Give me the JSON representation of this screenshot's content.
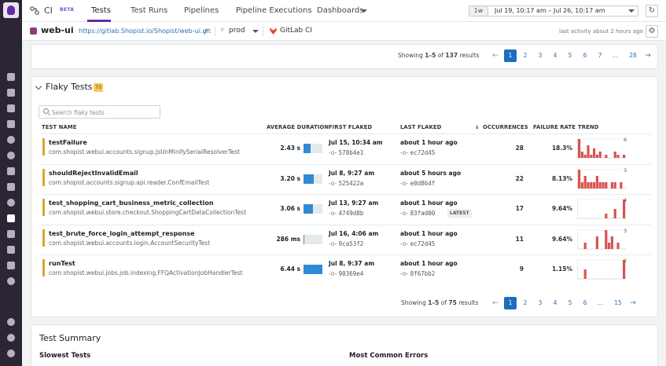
{
  "topnav": {
    "app": "CI",
    "beta": "BETA",
    "tabs": [
      {
        "label": "Tests"
      },
      {
        "label": "Test Runs"
      },
      {
        "label": "Pipelines"
      },
      {
        "label": "Pipeline Executions"
      },
      {
        "label": "Dashboards"
      }
    ],
    "time_range": {
      "preset": "1w",
      "value": "Jul 19, 10:17 am – Jul 26, 10:17 am"
    }
  },
  "repo": {
    "name": "web-ui",
    "url": "https://gitlab.Shopist.io/Shopist/web-ui.git",
    "branch": "prod",
    "provider": "GitLab CI",
    "activity": "last activity about 2 hours ago"
  },
  "top_pager": {
    "summary_prefix": "Showing ",
    "range": "1–5",
    "of": " of ",
    "total": "137",
    "suffix": " results",
    "pages": [
      "1",
      "2",
      "3",
      "4",
      "5",
      "6",
      "7",
      "...",
      "28"
    ]
  },
  "flaky": {
    "title": "Flaky Tests",
    "count": "75",
    "search_placeholder": "Search flaky tests",
    "columns": {
      "name": "TEST NAME",
      "avg": "AVERAGE DURATION",
      "first": "FIRST FLAKED",
      "last": "LAST FLAKED",
      "occ": "OCCURRENCES",
      "rate": "FAILURE RATE",
      "trend": "TREND"
    },
    "rows": [
      {
        "name": "testFailure",
        "suite": "com.shopist.webui.accounts.signup.JsUnMinifySerialResolverTest",
        "duration": "2.43 s",
        "duration_fill": 0.38,
        "first": "Jul 15, 10:34 am",
        "first_commit": "578b4e1",
        "last": "about 1 hour ago",
        "last_commit": "ec72d45",
        "latest": "",
        "occurrences": "28",
        "failure_rate": "18.3%",
        "trend_max": "6",
        "trend": [
          6,
          2,
          1,
          4,
          1,
          3,
          1,
          2,
          0,
          1,
          0,
          0,
          2,
          1,
          0,
          1
        ]
      },
      {
        "name": "shouldRejectInvalidEmail",
        "suite": "com.shopist.accounts.signup.api.reader.ConfEmailTest",
        "duration": "3.20 s",
        "duration_fill": 0.55,
        "first": "Jul 8, 9:27 am",
        "first_commit": "525422a",
        "last": "about 5 hours ago",
        "last_commit": "e0d864f",
        "latest": "",
        "occurrences": "22",
        "failure_rate": "8.13%",
        "trend_max": "3",
        "trend": [
          3,
          1,
          2,
          1,
          1,
          1,
          2,
          1,
          1,
          1,
          0,
          1,
          1,
          0,
          1,
          0
        ]
      },
      {
        "name": "test_shopping_cart_business_metric_collection",
        "suite": "com.shopist.webui.store.checkout.ShoppingCartDataCollectionTest",
        "duration": "3.06 s",
        "duration_fill": 0.5,
        "first": "Jul 13, 9:27 am",
        "first_commit": "4749d8b",
        "last": "about 1 hour ago",
        "last_commit": "83fad00",
        "latest": "LATEST",
        "occurrences": "17",
        "failure_rate": "9.64%",
        "trend_max": "4",
        "trend": [
          0,
          0,
          0,
          0,
          0,
          0,
          0,
          0,
          0,
          1,
          0,
          0,
          2,
          0,
          0,
          4
        ]
      },
      {
        "name": "test_brute_force_login_attempt_response",
        "suite": "com.shopist.webui.accounts.login.AccountSecurityTest",
        "duration": "286 ms",
        "duration_fill": 0.04,
        "first": "Jul 16, 4:06 am",
        "first_commit": "9ca53f2",
        "last": "about 1 hour ago",
        "last_commit": "ec72d45",
        "latest": "",
        "occurrences": "11",
        "failure_rate": "9.64%",
        "trend_max": "3",
        "trend": [
          0,
          0,
          1,
          0,
          0,
          0,
          2,
          0,
          0,
          3,
          1,
          2,
          0,
          1,
          0,
          0
        ]
      },
      {
        "name": "runTest",
        "suite": "com.shopist.webui.jobs.job.indexing.FFQActivationJobHandlerTest",
        "duration": "6.44 s",
        "duration_fill": 1.0,
        "first": "Jul 8, 9:37 am",
        "first_commit": "90369e4",
        "last": "about 1 hour ago",
        "last_commit": "8f67bb2",
        "latest": "",
        "occurrences": "9",
        "failure_rate": "1.15%",
        "trend_max": "2",
        "trend": [
          0,
          0,
          1,
          0,
          0,
          0,
          0,
          0,
          0,
          0,
          0,
          0,
          0,
          0,
          0,
          2
        ]
      }
    ],
    "pager": {
      "summary_prefix": "Showing ",
      "range": "1–5",
      "of": " of ",
      "total": "75",
      "suffix": " results",
      "pages": [
        "1",
        "2",
        "3",
        "4",
        "5",
        "6",
        "...",
        "15"
      ]
    }
  },
  "summary": {
    "title": "Test Summary",
    "slowest": "Slowest Tests",
    "errors": "Most Common Errors"
  },
  "colors": {
    "accent": "#632ca6",
    "trend_bar": "#d9534f",
    "flaky_marker": "#d9a62e",
    "link": "#1c6fbf"
  },
  "icons": [
    "ci-icon",
    "external-link-icon",
    "branch-icon",
    "gitlab-icon",
    "refresh-icon",
    "gear-icon",
    "search-icon",
    "commit-icon",
    "sort-desc-icon",
    "chevron-down-icon"
  ]
}
